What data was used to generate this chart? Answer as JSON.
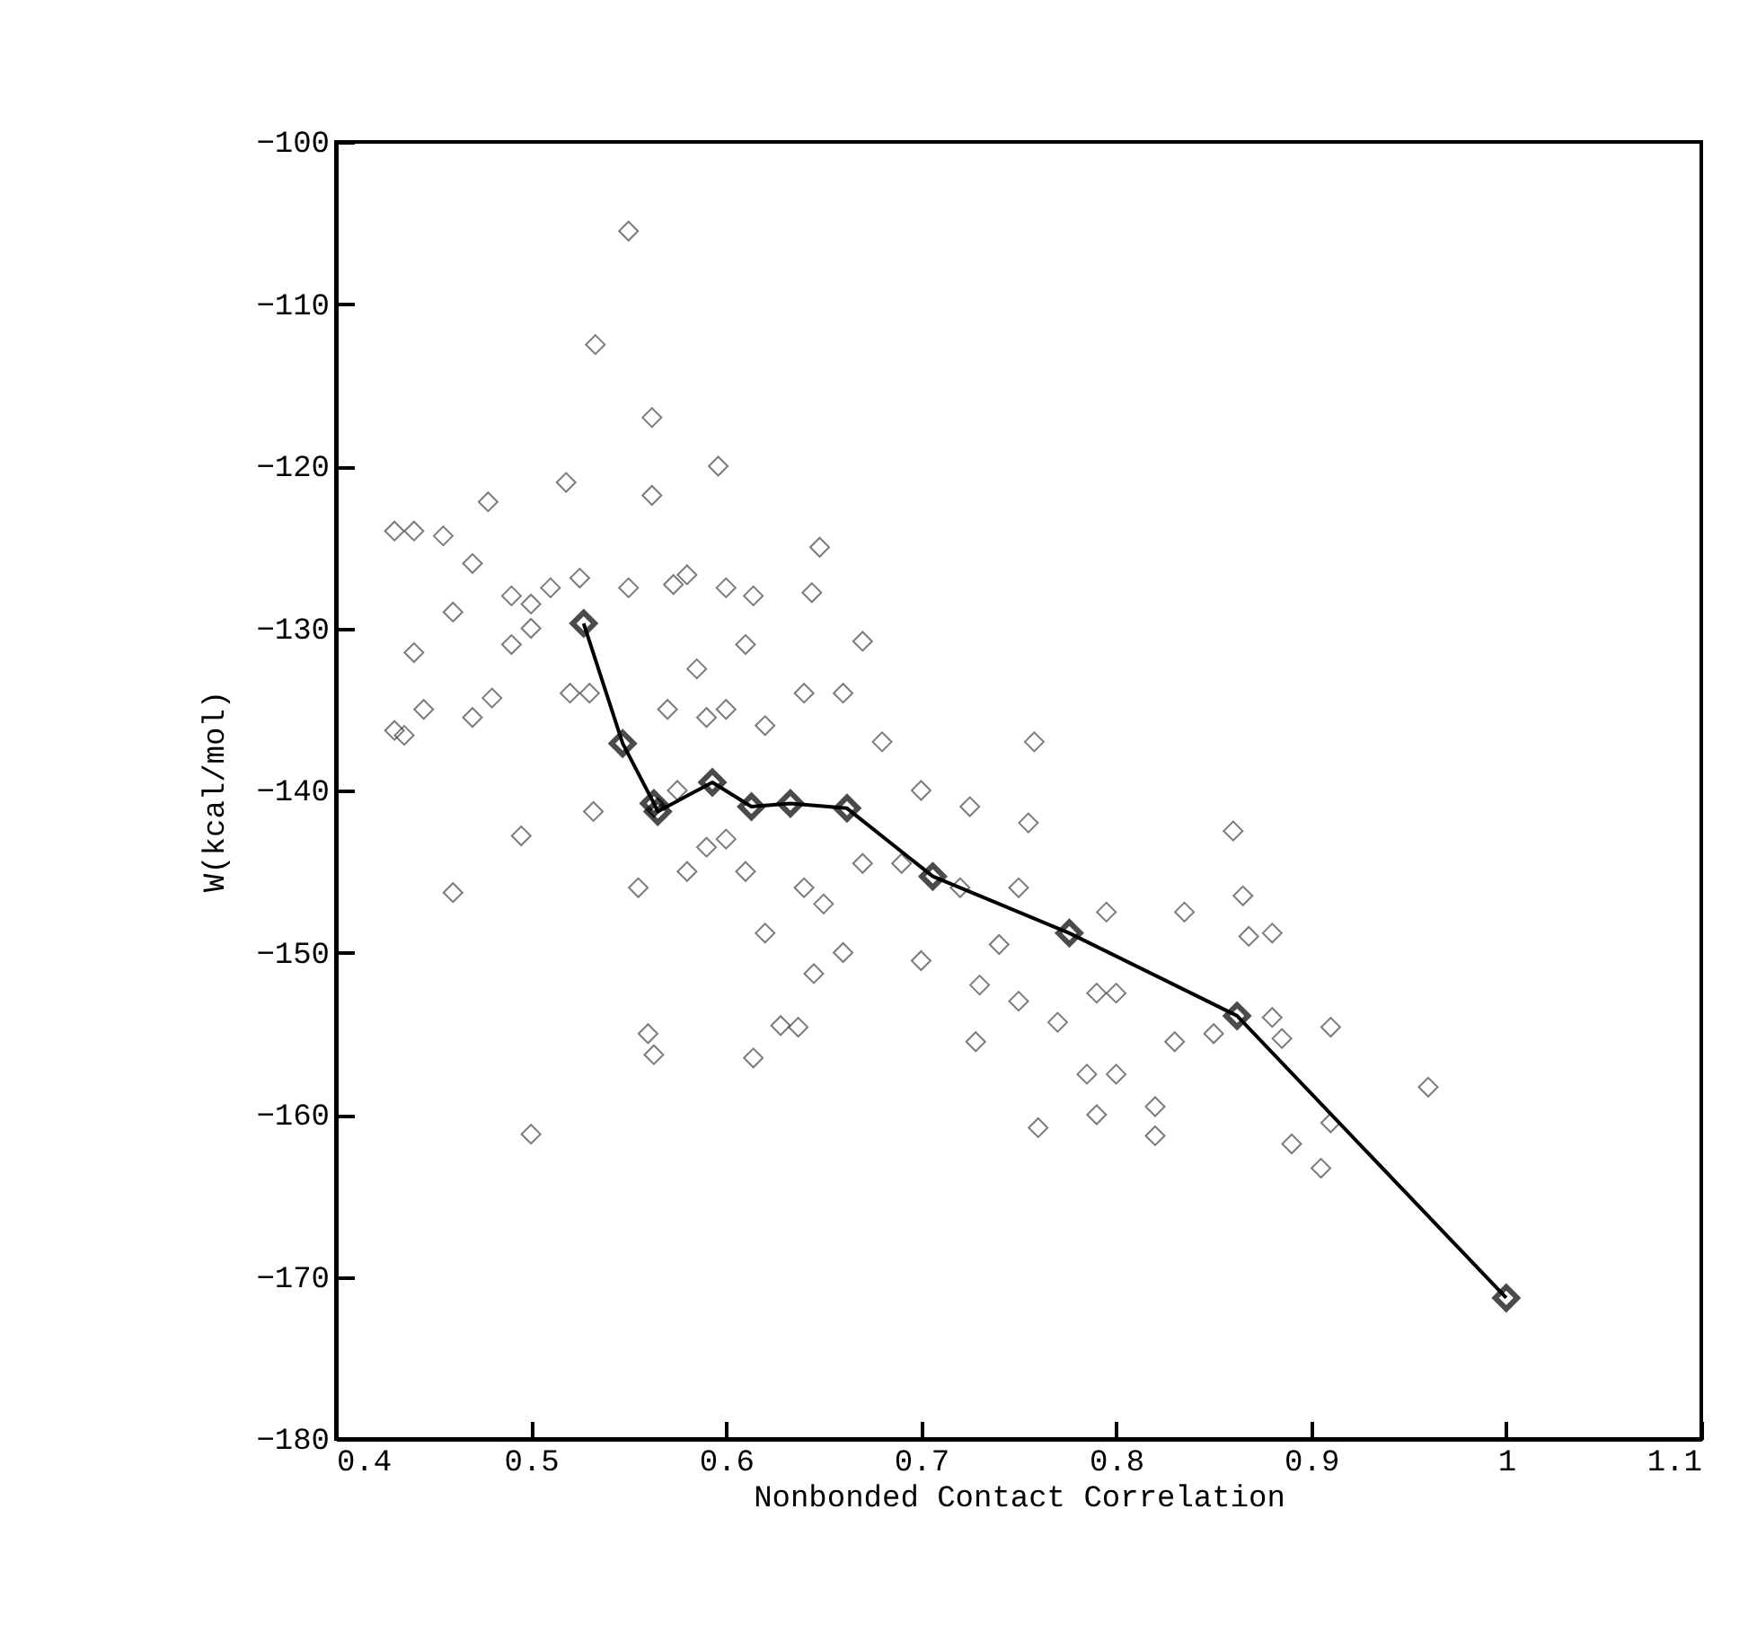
{
  "chart_data": {
    "type": "scatter",
    "xlabel": "Nonbonded Contact Correlation",
    "ylabel": "W(kcal/mol)",
    "xlim": [
      0.4,
      1.1
    ],
    "ylim": [
      -180,
      -100
    ],
    "xticks": [
      0.4,
      0.5,
      0.6,
      0.7,
      0.8,
      0.9,
      1,
      1.1
    ],
    "yticks": [
      -180,
      -170,
      -160,
      -150,
      -140,
      -130,
      -120,
      -110,
      -100
    ],
    "grid": false,
    "marker": "diamond",
    "series": [
      {
        "type": "scatter",
        "color": "#444444",
        "x": [
          0.43,
          0.44,
          0.455,
          0.478,
          0.47,
          0.46,
          0.49,
          0.5,
          0.44,
          0.445,
          0.43,
          0.435,
          0.47,
          0.49,
          0.48,
          0.495,
          0.46,
          0.5,
          0.51,
          0.518,
          0.525,
          0.52,
          0.533,
          0.532,
          0.53,
          0.55,
          0.562,
          0.562,
          0.55,
          0.573,
          0.596,
          0.6,
          0.614,
          0.644,
          0.648,
          0.67,
          0.66,
          0.64,
          0.6,
          0.585,
          0.575,
          0.58,
          0.555,
          0.56,
          0.563,
          0.614,
          0.5,
          0.6,
          0.62,
          0.628,
          0.637,
          0.645,
          0.65,
          0.67,
          0.69,
          0.7,
          0.72,
          0.725,
          0.728,
          0.758,
          0.755,
          0.76,
          0.74,
          0.75,
          0.77,
          0.785,
          0.79,
          0.79,
          0.795,
          0.8,
          0.8,
          0.82,
          0.82,
          0.83,
          0.835,
          0.85,
          0.86,
          0.865,
          0.868,
          0.88,
          0.88,
          0.885,
          0.89,
          0.905,
          0.91,
          0.91,
          0.96,
          0.68,
          0.7,
          0.62,
          0.59,
          0.61,
          0.64,
          0.66,
          0.73,
          0.75,
          0.59,
          0.57,
          0.61,
          0.58
        ],
        "values": [
          -124,
          -124,
          -124.3,
          -122.2,
          -126,
          -129,
          -128,
          -128.5,
          -131.5,
          -135,
          -136.3,
          -136.6,
          -135.5,
          -131,
          -134.3,
          -142.8,
          -146.3,
          -130,
          -127.5,
          -121,
          -126.9,
          -134,
          -112.5,
          -141.3,
          -134,
          -105.5,
          -117,
          -121.8,
          -127.5,
          -127.3,
          -120,
          -127.5,
          -128,
          -127.8,
          -125,
          -130.8,
          -134,
          -134,
          -135,
          -132.5,
          -140,
          -145,
          -146,
          -155,
          -156.3,
          -156.5,
          -161.2,
          -143,
          -148.8,
          -154.5,
          -154.6,
          -151.3,
          -147,
          -144.5,
          -144.5,
          -150.5,
          -146,
          -141,
          -155.5,
          -137,
          -142,
          -160.8,
          -149.5,
          -153,
          -154.3,
          -157.5,
          -160,
          -152.5,
          -147.5,
          -152.5,
          -157.5,
          -161.3,
          -159.5,
          -155.5,
          -147.5,
          -155,
          -142.5,
          -146.5,
          -149,
          -148.8,
          -154,
          -155.3,
          -161.8,
          -163.3,
          -154.6,
          -160.5,
          -158.3,
          -137,
          -140,
          -136,
          -135.5,
          -145,
          -146,
          -150,
          -152,
          -146,
          -143.5,
          -135,
          -131,
          -126.7
        ]
      },
      {
        "type": "line",
        "color": "#000000",
        "line_style": "solid",
        "x": [
          0.527,
          0.547,
          0.563,
          0.565,
          0.593,
          0.613,
          0.633,
          0.662,
          0.706,
          0.776,
          0.862,
          1
        ],
        "values": [
          -129.7,
          -137.1,
          -140.8,
          -141.3,
          -139.5,
          -141,
          -140.8,
          -141.1,
          -145.3,
          -148.8,
          -153.9,
          -171.3
        ]
      }
    ]
  }
}
